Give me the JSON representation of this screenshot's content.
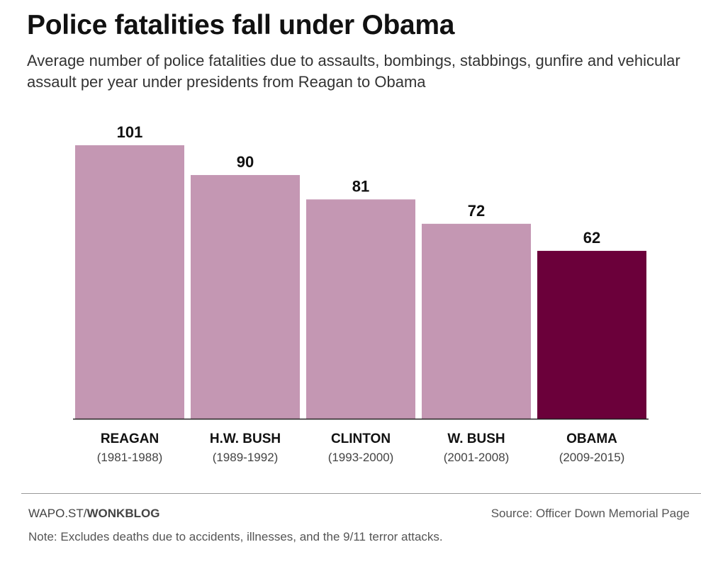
{
  "header": {
    "title": "Police fatalities fall under Obama",
    "subtitle": "Average number of police fatalities due to assaults, bombings, stabbings, gunfire and vehicular assault per year under presidents from Reagan to Obama"
  },
  "footer": {
    "credit_prefix": "WAPO.ST/",
    "credit_bold": "WONKBLOG",
    "source": "Source: Officer Down Memorial Page",
    "note": "Note: Excludes deaths due to accidents, illnesses, and the 9/11 terror attacks."
  },
  "colors": {
    "bar": "#c497b3",
    "highlight": "#6b003a",
    "baseline": "#222222"
  },
  "chart_data": {
    "type": "bar",
    "categories": [
      "REAGAN",
      "H.W. BUSH",
      "CLINTON",
      "W. BUSH",
      "OBAMA"
    ],
    "category_sublabels": [
      "(1981-1988)",
      "(1989-1992)",
      "(1993-2000)",
      "(2001-2008)",
      "(2009-2015)"
    ],
    "values": [
      101,
      90,
      81,
      72,
      62
    ],
    "data_labels": [
      "101",
      "90",
      "81",
      "72",
      "62"
    ],
    "highlight_index": 4,
    "ylim": [
      0,
      101
    ],
    "grid": false,
    "xlabel": "",
    "ylabel": ""
  }
}
